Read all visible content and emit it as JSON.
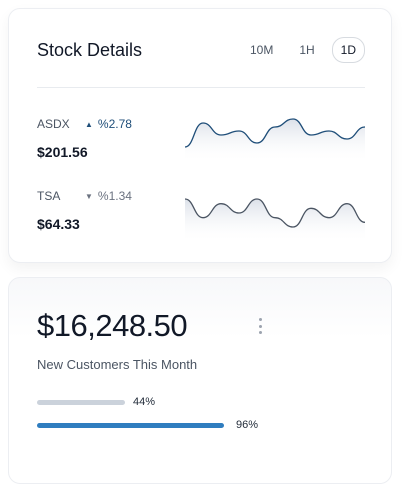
{
  "stock_details": {
    "title": "Stock Details",
    "tabs": [
      {
        "label": "10M",
        "active": false
      },
      {
        "label": "1H",
        "active": false
      },
      {
        "label": "1D",
        "active": true
      }
    ],
    "stocks": [
      {
        "name": "ASDX",
        "direction": "up",
        "change": "%2.78",
        "price": "$201.56",
        "line_color": "#1f4e79",
        "sparkline": [
          2,
          8,
          5,
          6,
          3,
          7,
          9,
          5,
          6,
          4,
          7
        ]
      },
      {
        "name": "TSA",
        "direction": "down",
        "change": "%1.34",
        "price": "$64.33",
        "line_color": "#4b5563",
        "sparkline": [
          8,
          4,
          7,
          5,
          8,
          4,
          2,
          6,
          4,
          7,
          3
        ]
      }
    ]
  },
  "customers": {
    "amount": "$16,248.50",
    "subtitle": "New Customers This Month",
    "menu_icon": "more-vertical-icon",
    "progress": [
      {
        "percent": 44,
        "label": "44%",
        "color": "#cbd2db",
        "max_width_fraction": 1
      },
      {
        "percent": 96,
        "label": "96%",
        "color": "#2f7dbf",
        "max_width_fraction": 1
      }
    ]
  }
}
